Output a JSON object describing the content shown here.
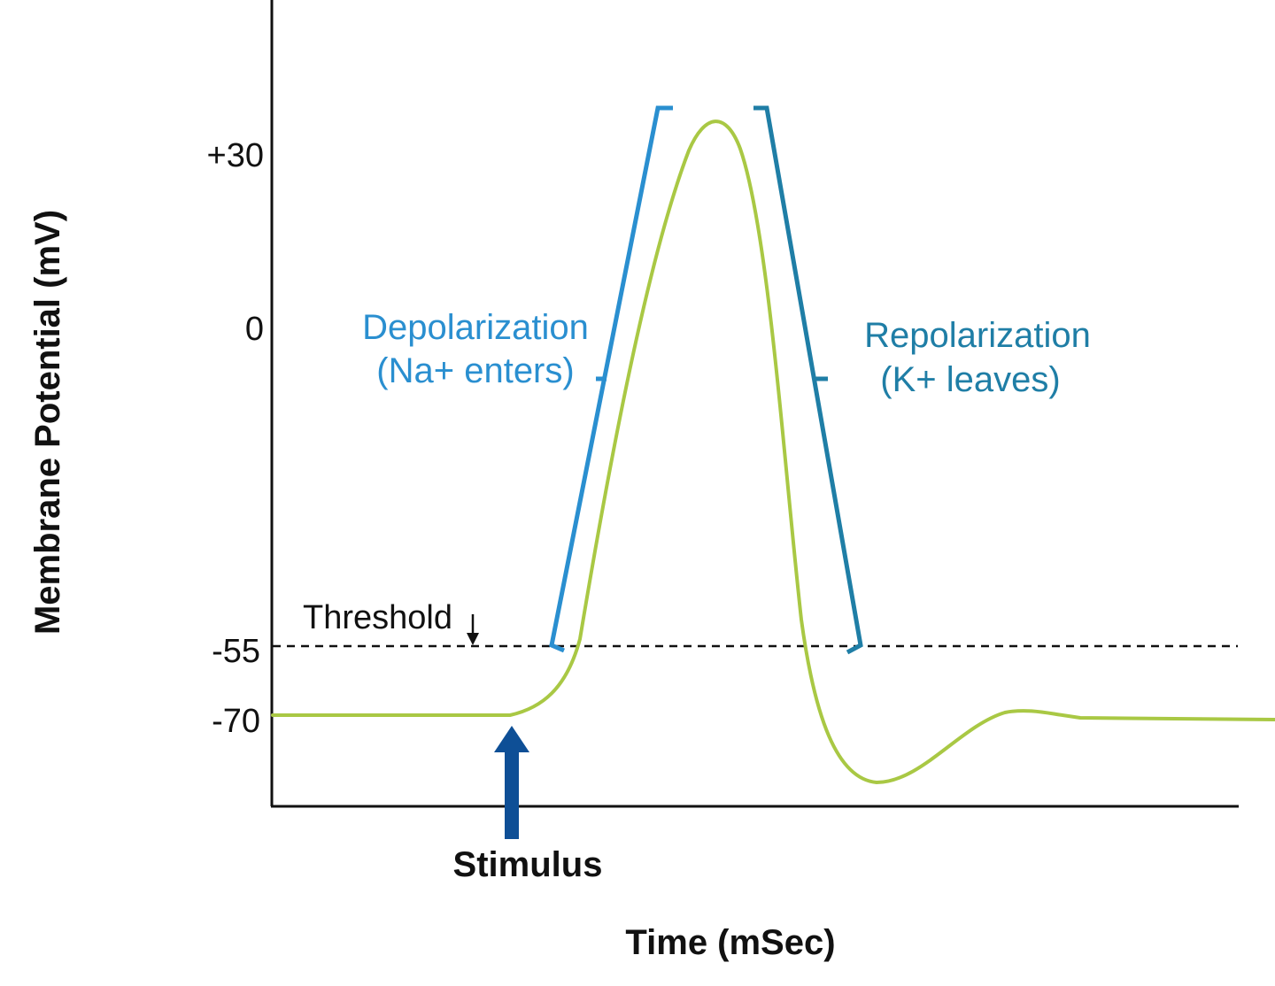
{
  "diagram": {
    "y_axis_label": "Membrane Potential (mV)",
    "x_axis_label": "Time (mSec)",
    "y_ticks": [
      "+30",
      "0",
      "-55",
      "-70"
    ],
    "threshold_label": "Threshold",
    "stimulus_label": "Stimulus",
    "depolarization": {
      "title": "Depolarization",
      "detail": "(Na+ enters)",
      "color": "#2a8fd0"
    },
    "repolarization": {
      "title": "Repolarization",
      "detail": "(K+ leaves)",
      "color": "#1f7ea6"
    },
    "colors": {
      "trace": "#a9c844",
      "stimulus_arrow": "#0e4f96",
      "axes": "#111111",
      "threshold_line": "#111111"
    }
  }
}
